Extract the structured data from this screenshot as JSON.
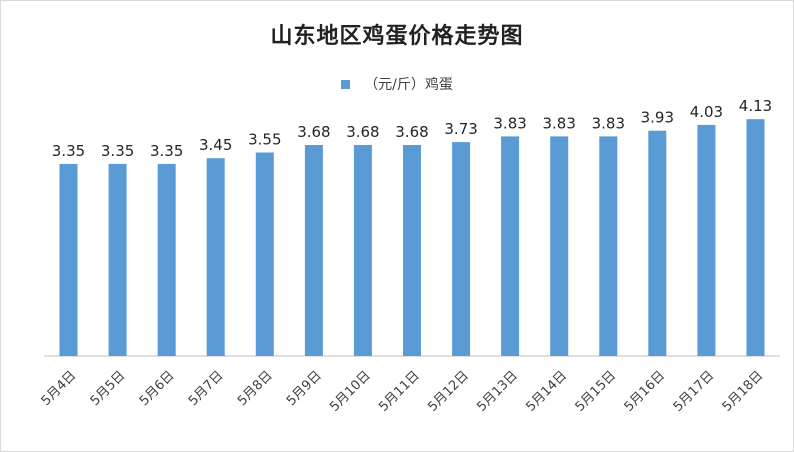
{
  "chart_data": {
    "type": "bar",
    "title": "山东地区鸡蛋价格走势图",
    "categories": [
      "5月4日",
      "5月5日",
      "5月6日",
      "5月7日",
      "5月8日",
      "5月9日",
      "5月10日",
      "5月11日",
      "5月12日",
      "5月13日",
      "5月14日",
      "5月15日",
      "5月16日",
      "5月17日",
      "5月18日"
    ],
    "series": [
      {
        "name": "（元/斤）鸡蛋",
        "values": [
          3.35,
          3.35,
          3.35,
          3.45,
          3.55,
          3.68,
          3.68,
          3.68,
          3.73,
          3.83,
          3.83,
          3.83,
          3.93,
          4.03,
          4.13
        ],
        "color": "#5b9bd5"
      }
    ],
    "data_labels": [
      "3.35",
      "3.35",
      "3.35",
      "3.45",
      "3.55",
      "3.68",
      "3.68",
      "3.68",
      "3.73",
      "3.83",
      "3.83",
      "3.83",
      "3.93",
      "4.03",
      "4.13"
    ],
    "xlabel": "",
    "ylabel": "",
    "ylim": [
      0,
      4.5
    ],
    "grid": false,
    "legend_position": "top"
  }
}
